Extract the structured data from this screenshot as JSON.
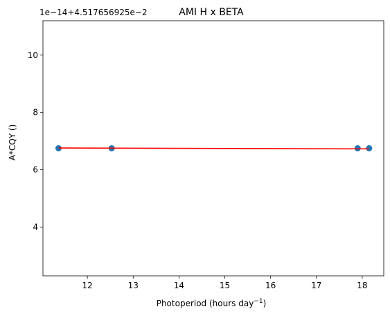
{
  "chart_data": {
    "type": "scatter",
    "title": "AMI H x BETA",
    "xlabel": "Photoperiod (hours day",
    "xlabel_sup": "−1",
    "xlabel_suffix": ")",
    "ylabel": "A*CQY ()",
    "y_offset_label": "1e−14+4.517656925e−2",
    "xlim": [
      11.03,
      18.47
    ],
    "ylim": [
      2.3,
      11.2
    ],
    "xticks": [
      12,
      13,
      14,
      15,
      16,
      17,
      18
    ],
    "yticks": [
      4,
      6,
      8,
      10
    ],
    "grid": false,
    "series": [
      {
        "kind": "scatter",
        "color": "#1f77b4",
        "points": [
          {
            "x": 11.37,
            "y": 6.75
          },
          {
            "x": 12.53,
            "y": 6.75
          },
          {
            "x": 17.9,
            "y": 6.75
          },
          {
            "x": 18.15,
            "y": 6.75
          }
        ]
      },
      {
        "kind": "line",
        "color": "#ff0000",
        "points": [
          {
            "x": 11.37,
            "y": 6.76
          },
          {
            "x": 18.15,
            "y": 6.73
          }
        ]
      }
    ]
  }
}
